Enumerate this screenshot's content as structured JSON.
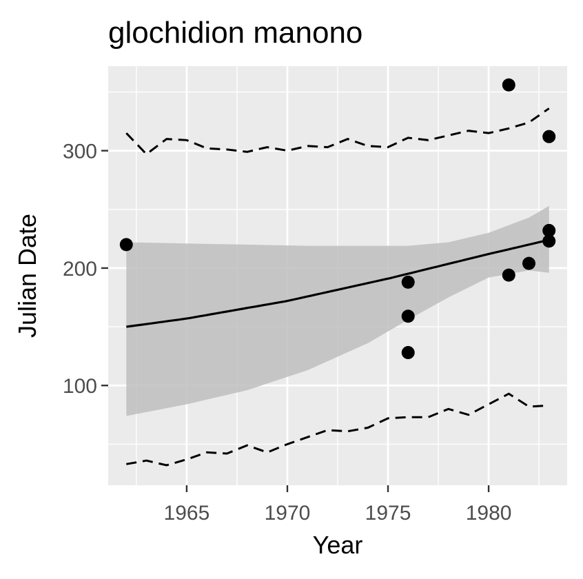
{
  "chart_data": {
    "type": "scatter",
    "title": "glochidion manono",
    "xlabel": "Year",
    "ylabel": "Julian Date",
    "xlim": [
      1961.1,
      1983.9
    ],
    "ylim": [
      15,
      372
    ],
    "x_ticks": [
      1965,
      1970,
      1975,
      1980
    ],
    "y_ticks": [
      100,
      200,
      300
    ],
    "grid": true,
    "points": [
      {
        "x": 1962,
        "y": 220
      },
      {
        "x": 1976,
        "y": 188
      },
      {
        "x": 1976,
        "y": 159
      },
      {
        "x": 1976,
        "y": 128
      },
      {
        "x": 1981,
        "y": 356
      },
      {
        "x": 1981,
        "y": 194
      },
      {
        "x": 1982,
        "y": 204
      },
      {
        "x": 1983,
        "y": 312
      },
      {
        "x": 1983,
        "y": 232
      },
      {
        "x": 1983,
        "y": 223
      }
    ],
    "fit_line": {
      "x": [
        1962,
        1965,
        1970,
        1975,
        1980,
        1983
      ],
      "y": [
        150,
        157,
        172,
        191,
        212,
        224
      ]
    },
    "confidence_band": {
      "x": [
        1962,
        1965,
        1968,
        1971,
        1974,
        1976,
        1978,
        1980,
        1982,
        1983
      ],
      "upper": [
        222,
        221,
        220,
        219,
        219,
        219,
        222,
        230,
        243,
        253
      ],
      "lower": [
        74,
        84,
        96,
        113,
        136,
        156,
        175,
        192,
        198,
        196
      ]
    },
    "upper_dashed": {
      "x": [
        1962,
        1963,
        1964,
        1965,
        1966,
        1967,
        1968,
        1969,
        1970,
        1971,
        1972,
        1973,
        1974,
        1975,
        1976,
        1977,
        1978,
        1979,
        1980,
        1981,
        1982,
        1983
      ],
      "y": [
        315,
        297,
        310,
        309,
        302,
        301,
        299,
        303,
        300,
        304,
        303,
        310,
        304,
        303,
        311,
        309,
        313,
        317,
        315,
        319,
        324,
        336
      ]
    },
    "lower_dashed": {
      "x": [
        1962,
        1963,
        1964,
        1965,
        1966,
        1967,
        1968,
        1969,
        1970,
        1971,
        1972,
        1973,
        1974,
        1975,
        1976,
        1977,
        1978,
        1979,
        1980,
        1981,
        1982,
        1983
      ],
      "y": [
        33,
        36,
        32,
        37,
        43,
        42,
        49,
        43,
        50,
        56,
        62,
        61,
        64,
        72,
        73,
        73,
        80,
        75,
        84,
        93,
        82,
        83
      ]
    },
    "colors": {
      "panel": "#EBEBEB",
      "grid": "#FFFFFF",
      "band": "#BEBEBE",
      "line": "#000000",
      "point": "#000000",
      "tick_text": "#4D4D4D",
      "tick_mark": "#333333"
    }
  }
}
